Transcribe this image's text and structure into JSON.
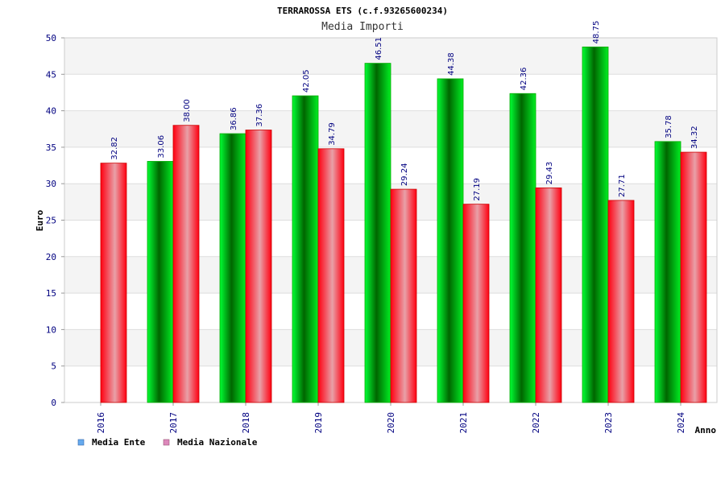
{
  "chart_data": {
    "type": "bar",
    "title": "TERRAROSSA ETS (c.f.93265600234)",
    "subtitle": "Media Importi",
    "xlabel": "Anno",
    "ylabel": "Euro",
    "ylim": [
      0,
      50
    ],
    "yticks": [
      0,
      5,
      10,
      15,
      20,
      25,
      30,
      35,
      40,
      45,
      50
    ],
    "categories": [
      "2016",
      "2017",
      "2018",
      "2019",
      "2020",
      "2021",
      "2022",
      "2023",
      "2024"
    ],
    "series": [
      {
        "name": "Media Ente",
        "color": "#00cc22",
        "legend_color": "#66aaee",
        "values": [
          null,
          33.06,
          36.86,
          42.05,
          46.51,
          44.38,
          42.36,
          48.75,
          35.78
        ],
        "labels": [
          "",
          "33.06",
          "36.86",
          "42.05",
          "46.51",
          "44.38",
          "42.36",
          "48.75",
          "35.78"
        ]
      },
      {
        "name": "Media Nazionale",
        "color": "#ee1122",
        "legend_color": "#dd88bb",
        "values": [
          32.82,
          38.0,
          37.36,
          34.79,
          29.24,
          27.19,
          29.43,
          27.71,
          34.32
        ],
        "labels": [
          "32.82",
          "38.00",
          "37.36",
          "34.79",
          "29.24",
          "27.19",
          "29.43",
          "27.71",
          "34.32"
        ]
      }
    ],
    "grid": true,
    "legend_position": "bottom-left"
  }
}
